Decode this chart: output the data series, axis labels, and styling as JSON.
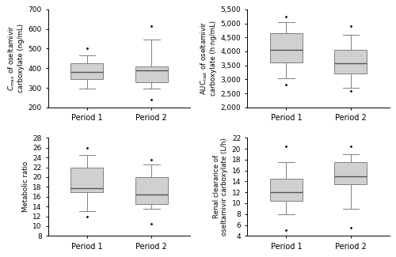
{
  "subplots": [
    {
      "ylabel": "$C_{\\mathrm{max}}$ of oseltamivir\ncarboxylate (ng/mL)",
      "ylim": [
        200,
        700
      ],
      "yticks": [
        200,
        300,
        400,
        500,
        600,
        700
      ],
      "categories": [
        "Period 1",
        "Period 2"
      ],
      "boxes": [
        {
          "q1": 345,
          "median": 380,
          "q3": 425,
          "whisker_low": 295,
          "whisker_high": 465,
          "outliers": [
            500
          ]
        },
        {
          "q1": 330,
          "median": 390,
          "q3": 407,
          "whisker_low": 295,
          "whisker_high": 545,
          "outliers": [
            615,
            240
          ]
        }
      ]
    },
    {
      "ylabel": "$\\mathrm{AUC_{last}}$ of oseltamivir\ncarboxylate (h·ng/mL)",
      "ylim": [
        2000,
        5500
      ],
      "yticks": [
        2000,
        2500,
        3000,
        3500,
        4000,
        4500,
        5000,
        5500
      ],
      "categories": [
        "Period 1",
        "Period 2"
      ],
      "boxes": [
        {
          "q1": 3600,
          "median": 4050,
          "q3": 4650,
          "whisker_low": 3050,
          "whisker_high": 5050,
          "outliers": [
            5250,
            2800
          ]
        },
        {
          "q1": 3200,
          "median": 3570,
          "q3": 4050,
          "whisker_low": 2700,
          "whisker_high": 4600,
          "outliers": [
            4900,
            2600
          ]
        }
      ]
    },
    {
      "ylabel": "Metabolic ratio",
      "ylim": [
        8,
        28
      ],
      "yticks": [
        8,
        10,
        12,
        14,
        16,
        18,
        20,
        22,
        24,
        26,
        28
      ],
      "categories": [
        "Period 1",
        "Period 2"
      ],
      "boxes": [
        {
          "q1": 17,
          "median": 17.8,
          "q3": 22,
          "whisker_low": 13,
          "whisker_high": 24.5,
          "outliers": [
            26,
            12
          ]
        },
        {
          "q1": 14.5,
          "median": 16.5,
          "q3": 20,
          "whisker_low": 13.5,
          "whisker_high": 22.5,
          "outliers": [
            23.5,
            10.5
          ]
        }
      ]
    },
    {
      "ylabel": "Renal clearance of\noseltamivir carboxylate (L/h)",
      "ylim": [
        4,
        22
      ],
      "yticks": [
        4,
        6,
        8,
        10,
        12,
        14,
        16,
        18,
        20,
        22
      ],
      "categories": [
        "Period 1",
        "Period 2"
      ],
      "boxes": [
        {
          "q1": 10.5,
          "median": 12,
          "q3": 14.5,
          "whisker_low": 8,
          "whisker_high": 17.5,
          "outliers": [
            20.5,
            5
          ]
        },
        {
          "q1": 13.5,
          "median": 15,
          "q3": 17.5,
          "whisker_low": 9,
          "whisker_high": 19,
          "outliers": [
            20.5,
            5.5
          ]
        }
      ]
    }
  ],
  "box_color": "#d0d0d0",
  "box_edge_color": "#808080",
  "median_color": "#555555",
  "whisker_color": "#808080",
  "cap_color": "#808080",
  "outlier_color": "black",
  "box_width": 0.5
}
